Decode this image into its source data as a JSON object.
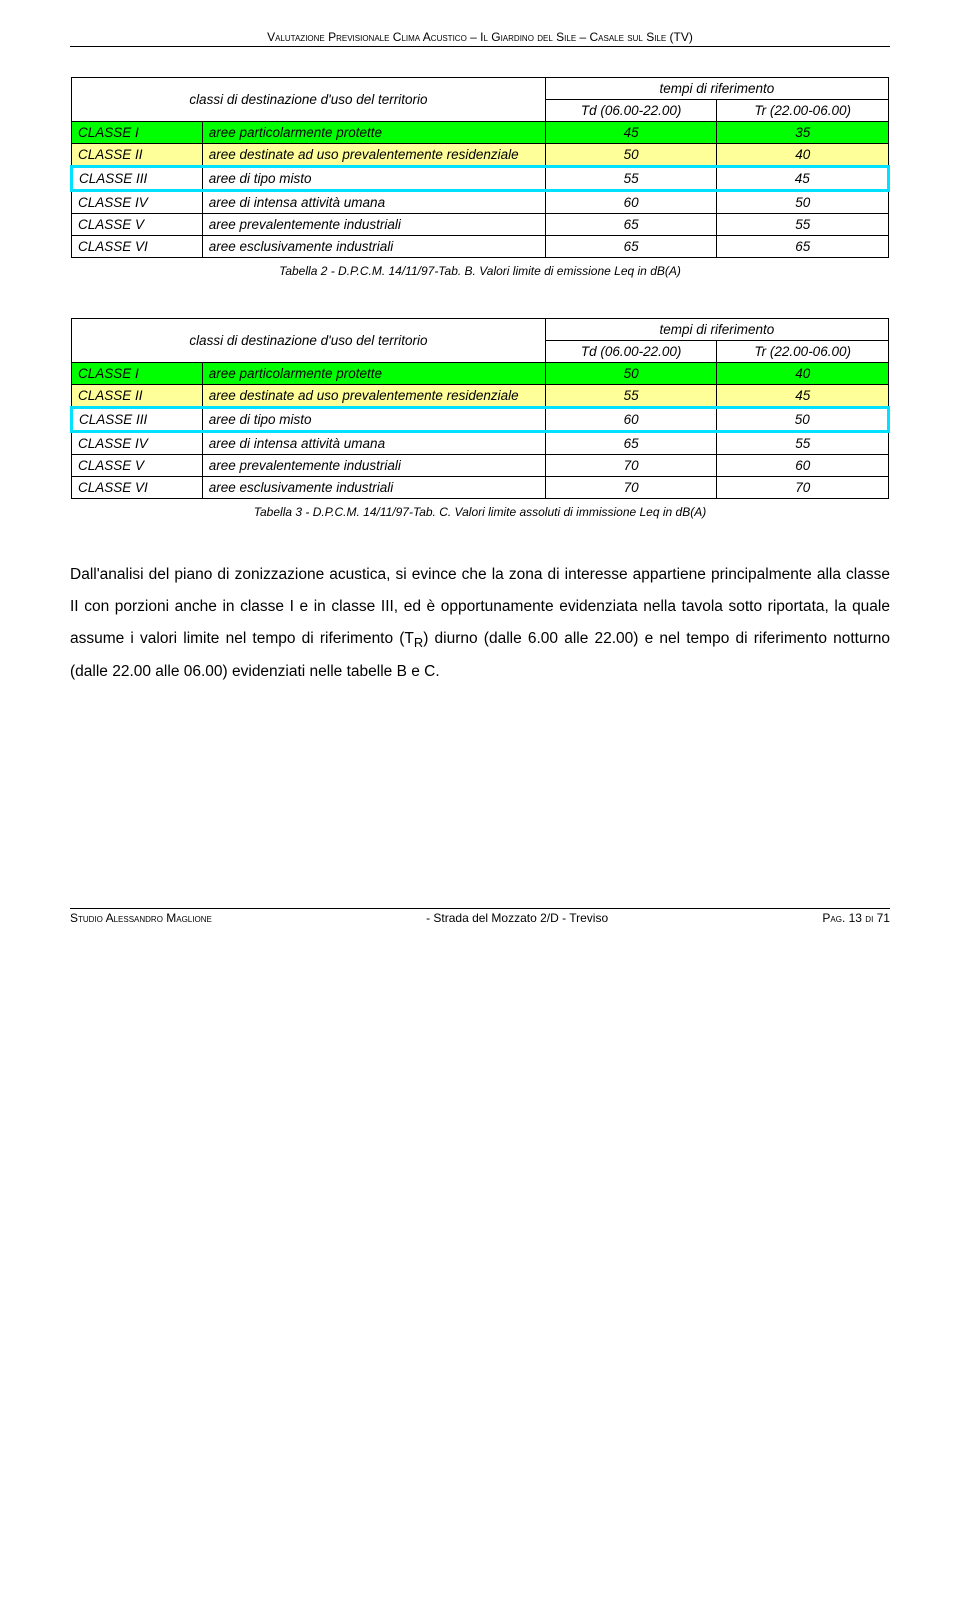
{
  "header": {
    "text": "Valutazione Previsionale Clima Acustico – Il Giardino del Sile – Casale sul Sile (TV)"
  },
  "table_common": {
    "hdr_classi": "classi di destinazione d'uso del territorio",
    "hdr_tempi": "tempi di riferimento",
    "hdr_td": "Td (06.00-22.00)",
    "hdr_tr": "Tr (22.00-06.00)",
    "class_labels": [
      "CLASSE I",
      "CLASSE II",
      "CLASSE III",
      "CLASSE IV",
      "CLASSE V",
      "CLASSE VI"
    ],
    "class_descs": [
      "aree particolarmente protette",
      "aree destinate ad uso prevalentemente residenziale",
      "aree di tipo misto",
      "aree di intensa attività umana",
      "aree prevalentemente industriali",
      "aree esclusivamente industriali"
    ]
  },
  "colors": {
    "row1": "#00ff00",
    "row2": "#ffff99",
    "highlight_border": "#00e0ff",
    "highlight_border_width": "3px"
  },
  "table1": {
    "values_td": [
      "45",
      "50",
      "55",
      "60",
      "65",
      "65"
    ],
    "values_tr": [
      "35",
      "40",
      "45",
      "50",
      "55",
      "65"
    ],
    "highlight_row_index": 2,
    "caption": "Tabella 2 - D.P.C.M. 14/11/97-Tab. B. Valori limite di emissione Leq in dB(A)"
  },
  "table2": {
    "values_td": [
      "50",
      "55",
      "60",
      "65",
      "70",
      "70"
    ],
    "values_tr": [
      "40",
      "45",
      "50",
      "55",
      "60",
      "70"
    ],
    "highlight_row_index": 2,
    "caption": "Tabella 3 - D.P.C.M. 14/11/97-Tab. C. Valori limite assoluti di immissione Leq in dB(A)"
  },
  "body": {
    "paragraph": "Dall'analisi del piano di zonizzazione acustica, si evince che la zona di interesse appartiene principalmente alla classe II con porzioni anche in classe I e in classe III, ed è opportunamente evidenziata nella tavola sotto riportata, la quale assume i valori limite nel tempo di riferimento (T",
    "sub": "R",
    "paragraph2": ") diurno (dalle 6.00 alle 22.00) e nel tempo di riferimento notturno (dalle 22.00 alle 06.00) evidenziati nelle tabelle B e C."
  },
  "footer": {
    "left": "Studio Alessandro Maglione",
    "center": "- Strada del Mozzato 2/D  - Treviso",
    "right": "Pag. 13 di 71"
  }
}
